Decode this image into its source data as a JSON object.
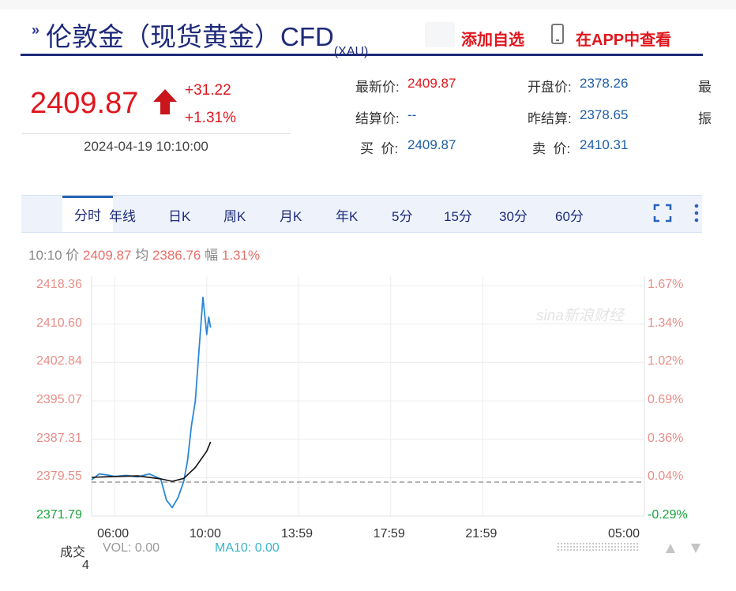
{
  "header": {
    "prefix_icon": "double-chevron-icon",
    "title": "伦敦金（现货黄金）CFD",
    "subtitle": "(XAU)",
    "add_favorite": "添加自选",
    "phone_icon": "phone-icon",
    "view_in_app": "在APP中查看"
  },
  "quote": {
    "price": "2409.87",
    "direction_icon": "up-arrow-icon",
    "change": "+31.22",
    "change_pct": "+1.31%",
    "datetime": "2024-04-19 10:10:00",
    "latest_label": "最新价:",
    "latest_value": "2409.87",
    "settle_label": "结算价:",
    "settle_value": "--",
    "buy_label": "买  价:",
    "buy_value": "2409.87",
    "open_label": "开盘价:",
    "open_value": "2378.26",
    "prev_settle_label": "昨结算:",
    "prev_settle_value": "2378.65",
    "sell_label": "卖  价:",
    "sell_value": "2410.31",
    "clipped_1": "最",
    "clipped_2": "振"
  },
  "tabs": [
    {
      "label": "分时",
      "active": true
    },
    {
      "label": "年线"
    },
    {
      "label": "日K"
    },
    {
      "label": "周K"
    },
    {
      "label": "月K"
    },
    {
      "label": "年K"
    },
    {
      "label": "5分"
    },
    {
      "label": "15分"
    },
    {
      "label": "30分"
    },
    {
      "label": "60分"
    }
  ],
  "toolbar_icons": {
    "fullscreen": "fullscreen-icon",
    "more": "more-vertical-icon"
  },
  "info_bar": {
    "time": "10:10",
    "price_label": "价",
    "price": "2409.87",
    "avg_label": "均",
    "avg": "2386.76",
    "range_label": "幅",
    "range": "1.31%"
  },
  "watermark": "sina新浪财经",
  "volume": {
    "label": "成交",
    "label_cont": "4",
    "vol": "VOL: 0.00",
    "ma10": "MA10: 0.00"
  },
  "colors": {
    "brand_navy": "#1e2a7a",
    "up_red": "#e0161d",
    "price_line": "#2a88d8",
    "avg_line": "#111111",
    "axis_label": "#e88e88",
    "low_green": "#1aa33a"
  },
  "chart_data": {
    "type": "line",
    "y_left_ticks": [
      "2418.36",
      "2410.60",
      "2402.84",
      "2395.07",
      "2387.31",
      "2379.55",
      "2371.79"
    ],
    "y_right_ticks": [
      "1.67%",
      "1.34%",
      "1.02%",
      "0.69%",
      "0.36%",
      "0.04%",
      "-0.29%"
    ],
    "x_ticks": [
      "06:00",
      "10:00",
      "13:59",
      "17:59",
      "21:59",
      "05:00"
    ],
    "ylim": [
      2371.79,
      2418.36
    ],
    "reference_price": 2378.65,
    "series": [
      {
        "name": "价",
        "points": [
          [
            "05:00",
            2379.1
          ],
          [
            "05:20",
            2380.3
          ],
          [
            "05:40",
            2380.1
          ],
          [
            "06:00",
            2379.8
          ],
          [
            "06:30",
            2380.0
          ],
          [
            "07:00",
            2379.7
          ],
          [
            "07:30",
            2380.3
          ],
          [
            "08:00",
            2379.3
          ],
          [
            "08:15",
            2375.0
          ],
          [
            "08:30",
            2373.5
          ],
          [
            "08:45",
            2375.5
          ],
          [
            "09:00",
            2378.8
          ],
          [
            "09:10",
            2383.0
          ],
          [
            "09:20",
            2390.0
          ],
          [
            "09:30",
            2395.0
          ],
          [
            "09:40",
            2405.5
          ],
          [
            "09:50",
            2416.0
          ],
          [
            "10:00",
            2408.5
          ],
          [
            "10:05",
            2412.0
          ],
          [
            "10:10",
            2409.87
          ]
        ]
      },
      {
        "name": "均",
        "points": [
          [
            "05:00",
            2379.6
          ],
          [
            "06:00",
            2379.8
          ],
          [
            "07:00",
            2379.9
          ],
          [
            "08:00",
            2379.3
          ],
          [
            "08:30",
            2378.8
          ],
          [
            "09:00",
            2379.4
          ],
          [
            "09:30",
            2381.6
          ],
          [
            "10:00",
            2384.9
          ],
          [
            "10:10",
            2386.76
          ]
        ]
      }
    ]
  }
}
